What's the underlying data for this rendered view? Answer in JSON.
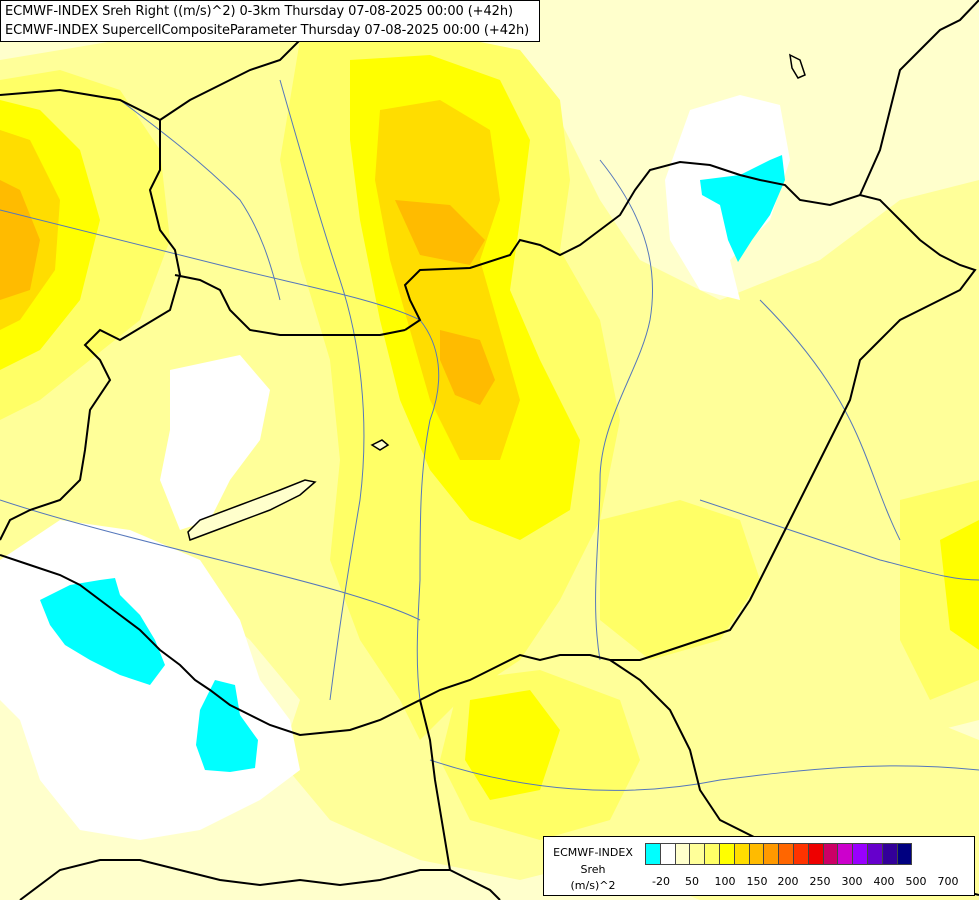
{
  "header": {
    "line1": "ECMWF-INDEX Sreh Right ((m/s)^2) 0-3km Thursday 07-08-2025 00:00 (+42h)",
    "line2": "ECMWF-INDEX SupercellCompositeParameter Thursday 07-08-2025 00:00 (+42h)"
  },
  "legend": {
    "title": "ECMWF-INDEX",
    "variable": "Sreh",
    "unit": "(m/s)^2",
    "colors": [
      "#00ffff",
      "#ffffff",
      "#ffffcc",
      "#ffff99",
      "#ffff66",
      "#ffff00",
      "#ffdd00",
      "#ffbb00",
      "#ff9900",
      "#ff6600",
      "#ff3300",
      "#ee0000",
      "#cc0066",
      "#cc00cc",
      "#9900ff",
      "#6600cc",
      "#330099",
      "#000080"
    ],
    "ticks": [
      "-20",
      "50",
      "100",
      "150",
      "200",
      "250",
      "300",
      "400",
      "500",
      "700"
    ]
  },
  "map_layers": {
    "fill_colors": {
      "background": "#ffffcc",
      "light": "#ffff99",
      "medium": "#ffff66",
      "strong": "#ffff00",
      "orange_light": "#ffdd00",
      "orange": "#ffbb00",
      "white": "#ffffff",
      "cyan": "#00ffff"
    },
    "border_color": "#000000",
    "river_color": "#5577bb"
  }
}
